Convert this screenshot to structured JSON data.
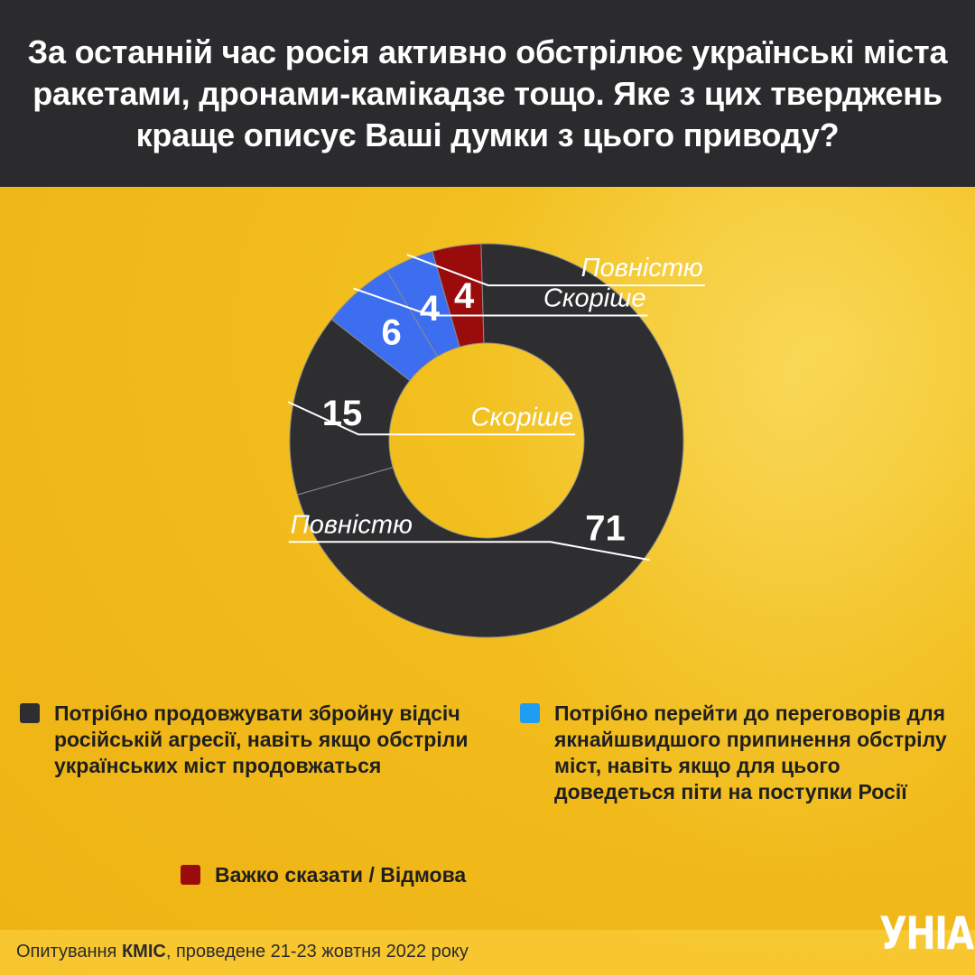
{
  "title": "За останній час росія активно обстрілює українські міста ракетами, дронами-камікадзе тощо. Яке з цих тверджень краще описує Ваші думки з цього приводу?",
  "chart_data": {
    "type": "pie",
    "title": "За останній час росія активно обстрілює українські міста ракетами, дронами-камікадзе тощо. Яке з цих тверджень краще описує Ваші думки з цього приводу?",
    "slices": [
      {
        "label": "Скоріше",
        "group": "Потрібно продовжувати збройну відсіч російській агресії, навіть якщо обстріли українських міст продовжаться",
        "value": 15,
        "value_label": "15",
        "color": "#2e2e31"
      },
      {
        "label": "Скоріше",
        "group": "Потрібно перейти до переговорів для якнайшвидшого припинення обстрілу міст, навіть якщо для цього доведеться піти на поступки Росії",
        "value": 6,
        "value_label": "6",
        "color": "#3d6ef0"
      },
      {
        "label": "Повністю",
        "group": "Потрібно перейти до переговорів для якнайшвидшого припинення обстрілу міст, навіть якщо для цього доведеться піти на поступки Росії",
        "value": 4,
        "value_label": "4",
        "color": "#3d6ef0"
      },
      {
        "label": "",
        "group": "Важко сказати / Відмова",
        "value": 4,
        "value_label": "4",
        "color": "#9a0c0c"
      },
      {
        "label": "Повністю",
        "group": "Потрібно продовжувати збройну відсіч російській агресії, навіть якщо обстріли українських міст продовжаться",
        "value": 71,
        "value_label": "71",
        "color": "#2e2e31"
      }
    ],
    "legend": [
      {
        "label": "Потрібно продовжувати збройну відсіч російській агресії, навіть якщо обстріли українських міст продовжаться",
        "color": "#2e2e31"
      },
      {
        "label": "Потрібно перейти до переговорів для якнайшвидшого припинення обстрілу міст, навіть якщо для цього доведеться піти на поступки Росії",
        "color": "#1e9df2"
      },
      {
        "label": "Важко сказати / Відмова",
        "color": "#9a0c0c"
      }
    ]
  },
  "legend": {
    "item1": "Потрібно продовжувати збройну відсіч російській агресії, навіть якщо обстріли українських міст продовжаться",
    "item2": "Потрібно перейти до переговорів для якнайшвидшого припинення обстрілу міст, навіть якщо для цього доведеться піти на поступки Росії",
    "item3": "Важко сказати / Відмова"
  },
  "footer": {
    "prefix": "Опитування ",
    "org": "КМІС",
    "suffix": ", проведене 21-23 жовтня 2022 року"
  },
  "logo": {
    "text": "УНІАН"
  }
}
